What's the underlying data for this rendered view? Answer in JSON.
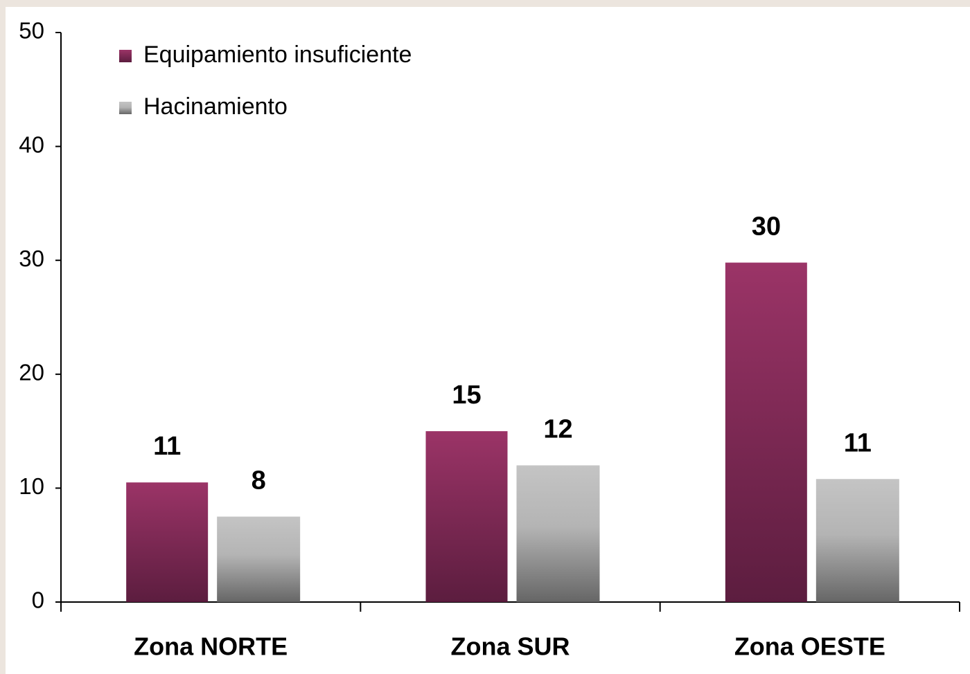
{
  "chart_data": {
    "type": "bar",
    "categories": [
      "Zona NORTE",
      "Zona SUR",
      "Zona OESTE"
    ],
    "series": [
      {
        "name": "Equipamiento insuficiente",
        "color": "#8e2d5c",
        "values": [
          10.5,
          15,
          29.8
        ],
        "value_labels": [
          "11",
          "15",
          "30"
        ]
      },
      {
        "name": "Hacinamiento",
        "color": "#a0a0a0",
        "values": [
          7.5,
          12,
          10.8
        ],
        "value_labels": [
          "8",
          "12",
          "11"
        ]
      }
    ],
    "ylim": [
      0,
      50
    ],
    "yticks": [
      0,
      10,
      20,
      30,
      40,
      50
    ],
    "grid": false,
    "legend": "top-left"
  }
}
